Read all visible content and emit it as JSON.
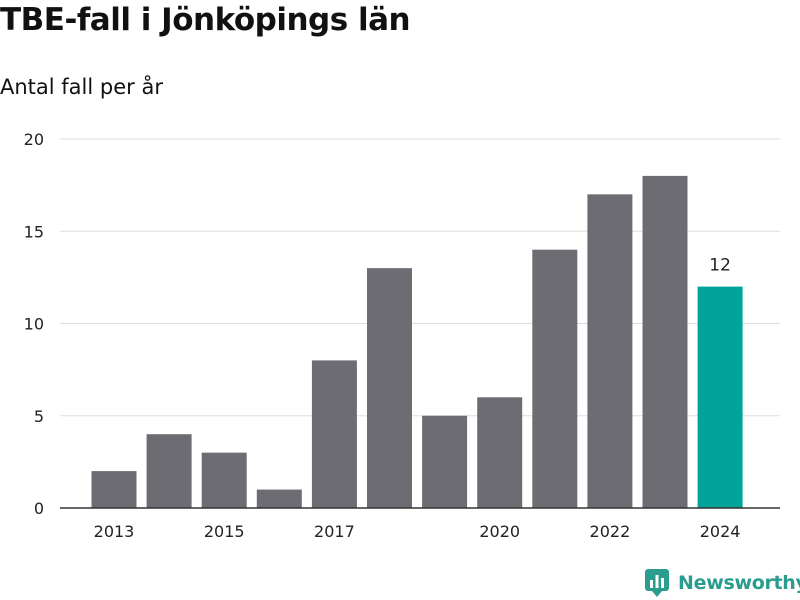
{
  "title": "TBE-fall i Jönköpings län",
  "subtitle": "Antal fall per år",
  "brand": {
    "name": "Newsworthy",
    "color": "#2a9d8f"
  },
  "chart_data": {
    "type": "bar",
    "title": "TBE-fall i Jönköpings län",
    "subtitle": "Antal fall per år",
    "xlabel": "",
    "ylabel": "",
    "categories": [
      "2013",
      "2014",
      "2015",
      "2016",
      "2017",
      "2018",
      "2019",
      "2020",
      "2021",
      "2022",
      "2023",
      "2024"
    ],
    "values": [
      2,
      4,
      3,
      1,
      8,
      13,
      5,
      6,
      14,
      17,
      18,
      12
    ],
    "x_tick_labels": [
      "2013",
      "2015",
      "2017",
      "2020",
      "2022",
      "2024"
    ],
    "y_ticks": [
      0,
      5,
      10,
      15,
      20
    ],
    "ylim": [
      0,
      20
    ],
    "grid": true,
    "highlight": {
      "category": "2024",
      "value_label": "12"
    },
    "colors": {
      "bar": "#6d6c72",
      "highlight": "#00a499",
      "grid": "#dddddd",
      "axis": "#333333"
    }
  }
}
